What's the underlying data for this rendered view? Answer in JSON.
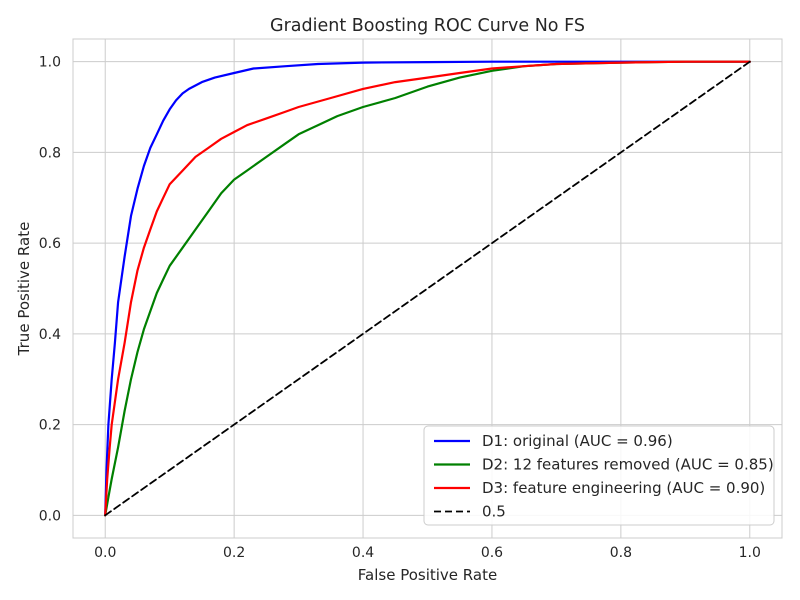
{
  "chart_data": {
    "type": "line",
    "title": "Gradient Boosting ROC Curve No FS",
    "xlabel": "False Positive Rate",
    "ylabel": "True Positive Rate",
    "xlim": [
      -0.05,
      1.05
    ],
    "ylim": [
      -0.05,
      1.05
    ],
    "xticks": [
      "0.0",
      "0.2",
      "0.4",
      "0.6",
      "0.8",
      "1.0"
    ],
    "yticks": [
      "0.0",
      "0.2",
      "0.4",
      "0.6",
      "0.8",
      "1.0"
    ],
    "grid": true,
    "legend_position": "lower-right",
    "series": [
      {
        "name": "D1: original (AUC = 0.96)",
        "color": "#0000ff",
        "style": "solid",
        "x": [
          0,
          0.002,
          0.005,
          0.01,
          0.015,
          0.02,
          0.03,
          0.04,
          0.05,
          0.06,
          0.07,
          0.08,
          0.09,
          0.1,
          0.11,
          0.12,
          0.13,
          0.15,
          0.17,
          0.2,
          0.23,
          0.28,
          0.33,
          0.4,
          0.5,
          0.6,
          0.7,
          0.8,
          0.9,
          1.0
        ],
        "y": [
          0,
          0.1,
          0.2,
          0.3,
          0.38,
          0.47,
          0.57,
          0.66,
          0.72,
          0.77,
          0.81,
          0.84,
          0.87,
          0.895,
          0.915,
          0.93,
          0.94,
          0.955,
          0.965,
          0.975,
          0.985,
          0.99,
          0.995,
          0.998,
          0.999,
          1.0,
          1.0,
          1.0,
          1.0,
          1.0
        ]
      },
      {
        "name": "D2: 12 features removed (AUC = 0.85)",
        "color": "#008000",
        "style": "solid",
        "x": [
          0,
          0.005,
          0.01,
          0.02,
          0.03,
          0.04,
          0.05,
          0.06,
          0.07,
          0.08,
          0.09,
          0.1,
          0.12,
          0.14,
          0.16,
          0.18,
          0.2,
          0.22,
          0.25,
          0.28,
          0.3,
          0.33,
          0.36,
          0.4,
          0.45,
          0.5,
          0.55,
          0.6,
          0.65,
          0.7,
          0.8,
          0.9,
          1.0
        ],
        "y": [
          0,
          0.04,
          0.08,
          0.15,
          0.23,
          0.3,
          0.36,
          0.41,
          0.45,
          0.49,
          0.52,
          0.55,
          0.59,
          0.63,
          0.67,
          0.71,
          0.74,
          0.76,
          0.79,
          0.82,
          0.84,
          0.86,
          0.88,
          0.9,
          0.92,
          0.945,
          0.965,
          0.98,
          0.99,
          0.995,
          0.998,
          1.0,
          1.0
        ]
      },
      {
        "name": "D3: feature engineering (AUC = 0.90)",
        "color": "#ff0000",
        "style": "solid",
        "x": [
          0,
          0.003,
          0.007,
          0.01,
          0.02,
          0.03,
          0.04,
          0.05,
          0.06,
          0.07,
          0.08,
          0.09,
          0.1,
          0.12,
          0.14,
          0.16,
          0.18,
          0.2,
          0.22,
          0.25,
          0.28,
          0.3,
          0.35,
          0.4,
          0.45,
          0.5,
          0.55,
          0.6,
          0.65,
          0.7,
          0.8,
          0.9,
          1.0
        ],
        "y": [
          0,
          0.08,
          0.15,
          0.2,
          0.3,
          0.38,
          0.47,
          0.54,
          0.59,
          0.63,
          0.67,
          0.7,
          0.73,
          0.76,
          0.79,
          0.81,
          0.83,
          0.845,
          0.86,
          0.875,
          0.89,
          0.9,
          0.92,
          0.94,
          0.955,
          0.965,
          0.975,
          0.985,
          0.99,
          0.995,
          0.998,
          1.0,
          1.0
        ]
      },
      {
        "name": "0.5",
        "color": "#000000",
        "style": "dashed",
        "x": [
          0,
          1
        ],
        "y": [
          0,
          1
        ]
      }
    ]
  }
}
